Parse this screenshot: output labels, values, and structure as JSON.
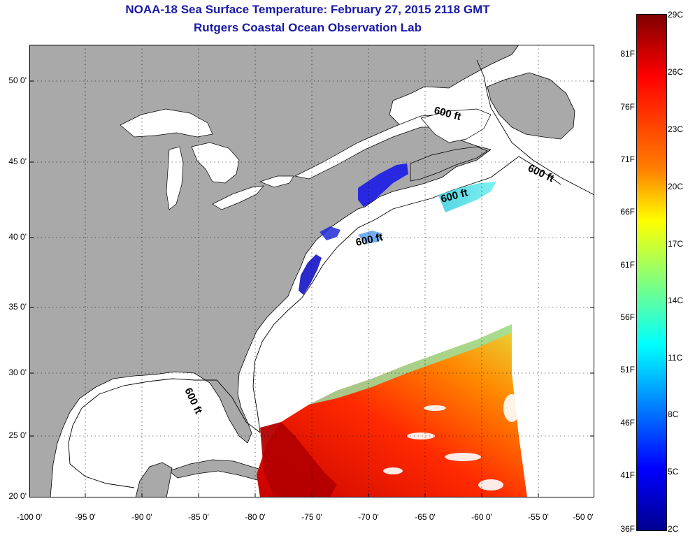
{
  "header": {
    "title": "NOAA-18 Sea Surface Temperature:  February 27, 2015 2118 GMT",
    "subtitle": "Rutgers Coastal Ocean Observation Lab"
  },
  "map": {
    "lat_labels": [
      "50 0'",
      "45 0'",
      "40 0'",
      "35 0'",
      "30 0'",
      "25 0'",
      "20 0'"
    ],
    "lon_labels": [
      "-100 0'",
      "-95 0'",
      "-90 0'",
      "-85 0'",
      "-80 0'",
      "-75 0'",
      "-70 0'",
      "-65 0'",
      "-60 0'",
      "-55 0'",
      "-50 0'"
    ],
    "isobath_label": "600 ft",
    "land_color": "#a9a9a9",
    "ocean_color": "#ffffff"
  },
  "colorbar": {
    "fahrenheit_labels": [
      "81F",
      "76F",
      "71F",
      "66F",
      "61F",
      "56F",
      "51F",
      "46F",
      "41F",
      "36F"
    ],
    "celsius_labels": [
      "29C",
      "26C",
      "23C",
      "20C",
      "17C",
      "14C",
      "11C",
      "8C",
      "5C",
      "2C"
    ],
    "colors": [
      "#7f0000",
      "#ff0000",
      "#ff7f00",
      "#ffff00",
      "#7fff7f",
      "#00ffff",
      "#007fff",
      "#0000ff",
      "#00008f"
    ]
  }
}
